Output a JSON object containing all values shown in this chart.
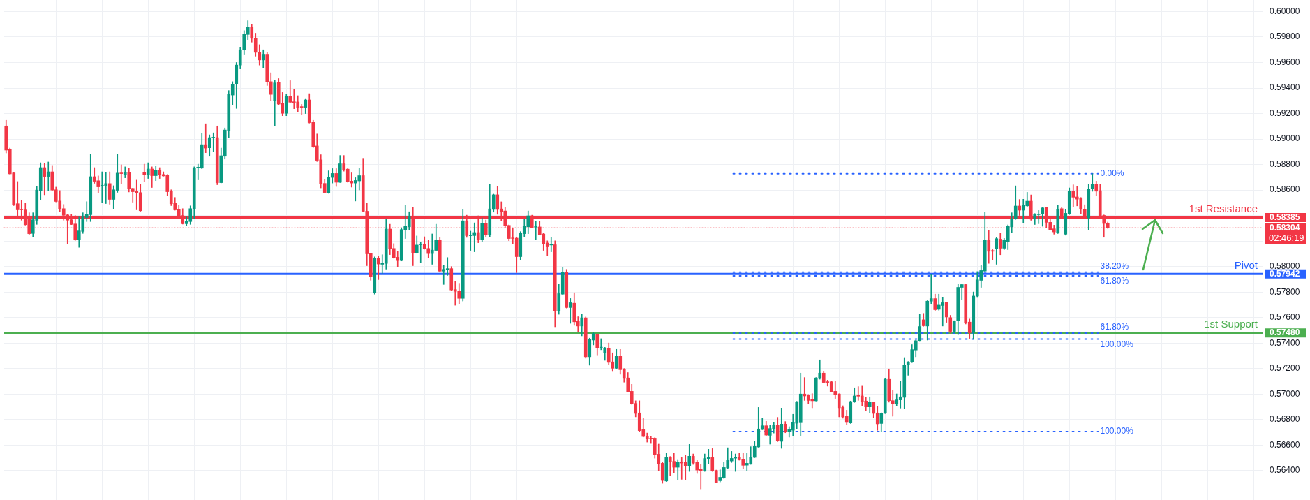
{
  "chart_data": {
    "type": "candlestick",
    "categories": [
      null,
      null,
      null,
      null,
      null,
      null,
      null,
      null,
      null,
      null,
      null,
      null,
      null,
      null,
      null,
      null,
      null,
      null,
      null,
      null,
      null,
      null,
      null,
      null,
      null,
      null,
      null,
      null,
      null,
      null,
      null,
      null,
      null,
      null,
      null,
      null,
      null,
      null,
      null,
      null,
      null,
      null,
      null,
      null,
      null,
      null,
      null,
      null,
      null,
      null,
      null,
      null,
      null,
      null,
      null,
      null,
      null,
      null,
      null,
      null,
      null,
      null,
      null,
      null,
      null,
      null,
      null,
      null,
      null,
      null,
      null,
      null,
      null,
      null,
      null,
      null,
      null,
      null,
      null,
      null,
      null,
      null,
      null,
      null,
      null,
      null,
      null,
      null,
      null,
      null,
      null,
      null,
      null,
      null,
      null,
      null,
      null,
      null,
      null,
      null,
      null,
      null,
      null,
      null,
      null,
      null,
      null,
      null,
      null,
      null,
      null,
      null,
      null,
      null,
      null,
      null,
      null,
      null,
      null,
      null,
      null,
      null,
      null,
      null,
      null,
      null,
      null,
      null,
      null,
      null,
      null,
      null,
      null,
      null,
      null,
      null,
      null,
      null,
      null,
      null,
      null,
      null,
      null,
      null,
      null,
      null,
      null,
      null,
      null,
      null,
      null,
      null,
      null,
      null,
      null,
      null,
      null,
      null,
      null,
      null,
      null,
      null,
      null,
      null,
      null,
      null,
      null,
      null,
      null,
      null,
      null,
      null,
      null,
      null,
      null,
      null,
      null,
      null,
      null,
      null,
      null,
      null,
      null,
      null,
      null,
      null,
      null,
      null,
      null,
      null,
      null,
      null,
      null,
      null,
      null,
      null,
      null,
      null,
      null,
      null,
      null,
      null,
      null,
      null,
      null,
      null,
      null,
      null,
      null,
      null,
      null,
      null,
      null,
      null,
      null,
      null,
      null,
      null,
      null,
      null,
      null,
      null,
      null,
      null,
      null,
      null,
      null,
      null,
      null,
      null,
      null,
      null,
      null,
      null,
      null,
      null,
      null,
      null,
      null,
      null,
      null,
      null,
      null,
      null,
      null,
      null,
      null,
      null,
      null,
      null,
      null,
      null,
      null,
      null,
      null,
      null,
      null,
      null,
      null,
      null,
      null,
      null,
      null,
      null,
      null,
      null,
      null,
      null,
      null,
      null,
      null,
      null,
      null,
      null,
      null,
      null,
      null,
      null,
      null,
      null,
      null,
      null,
      null,
      null,
      null,
      null,
      null,
      null,
      null,
      null,
      null,
      null,
      null,
      null,
      null,
      null,
      null,
      null,
      null,
      null,
      null,
      null,
      null,
      null,
      null,
      null,
      null,
      null,
      null,
      null,
      null,
      null,
      null,
      null,
      null,
      null,
      null,
      null,
      null,
      null,
      null,
      null,
      null,
      null,
      null,
      null,
      null,
      null
    ],
    "ohlc": [
      [
        0.59103,
        0.59147,
        0.58891,
        0.58913
      ],
      [
        0.58918,
        0.58929,
        0.58725,
        0.58727
      ],
      [
        0.58734,
        0.5874,
        0.58478,
        0.58487
      ],
      [
        0.58493,
        0.58667,
        0.58385,
        0.58445
      ],
      [
        0.58447,
        0.5852,
        0.58364,
        0.58445
      ],
      [
        0.58444,
        0.58498,
        0.58325,
        0.58329
      ],
      [
        0.58373,
        0.58422,
        0.58249,
        0.58258
      ],
      [
        0.5826,
        0.58422,
        0.58233,
        0.58367
      ],
      [
        0.58363,
        0.58629,
        0.58331,
        0.586
      ],
      [
        0.58596,
        0.58814,
        0.58522,
        0.58776
      ],
      [
        0.58776,
        0.58809,
        0.58563,
        0.58707
      ],
      [
        0.58707,
        0.5882,
        0.58593,
        0.58743
      ],
      [
        0.58743,
        0.58793,
        0.58596,
        0.586
      ],
      [
        0.58602,
        0.58623,
        0.58507,
        0.58511
      ],
      [
        0.58514,
        0.58596,
        0.58429,
        0.58451
      ],
      [
        0.58454,
        0.58487,
        0.58364,
        0.58402
      ],
      [
        0.58405,
        0.58408,
        0.58178,
        0.58364
      ],
      [
        0.58367,
        0.58411,
        0.58329,
        0.58331
      ],
      [
        0.58334,
        0.584,
        0.58205,
        0.58209
      ],
      [
        0.58211,
        0.58389,
        0.58151,
        0.5828
      ],
      [
        0.58276,
        0.58422,
        0.5826,
        0.58389
      ],
      [
        0.58385,
        0.58509,
        0.58353,
        0.58411
      ],
      [
        0.58407,
        0.5888,
        0.58353,
        0.58705
      ],
      [
        0.58705,
        0.58776,
        0.58653,
        0.58669
      ],
      [
        0.58673,
        0.58711,
        0.58576,
        0.58625
      ],
      [
        0.58632,
        0.58743,
        0.585,
        0.58634
      ],
      [
        0.58631,
        0.5874,
        0.58494,
        0.58651
      ],
      [
        0.58651,
        0.58743,
        0.58489,
        0.58527
      ],
      [
        0.58527,
        0.58634,
        0.58451,
        0.58602
      ],
      [
        0.58598,
        0.5888,
        0.58582,
        0.58733
      ],
      [
        0.58733,
        0.58798,
        0.58647,
        0.58729
      ],
      [
        0.58723,
        0.58782,
        0.58696,
        0.58738
      ],
      [
        0.58738,
        0.58771,
        0.58585,
        0.58609
      ],
      [
        0.58613,
        0.58615,
        0.58505,
        0.58587
      ],
      [
        0.58593,
        0.58678,
        0.58445,
        0.58576
      ],
      [
        0.5858,
        0.58645,
        0.58434,
        0.58438
      ],
      [
        0.58738,
        0.58803,
        0.58663,
        0.58718
      ],
      [
        0.58718,
        0.58814,
        0.58691,
        0.58765
      ],
      [
        0.58765,
        0.58782,
        0.5862,
        0.58713
      ],
      [
        0.58713,
        0.58787,
        0.58674,
        0.58754
      ],
      [
        0.58754,
        0.58776,
        0.58691,
        0.58718
      ],
      [
        0.58722,
        0.58743,
        0.58709,
        0.58711
      ],
      [
        0.58716,
        0.58722,
        0.58554,
        0.58587
      ],
      [
        0.58591,
        0.58602,
        0.58478,
        0.58493
      ],
      [
        0.58498,
        0.58542,
        0.58442,
        0.58445
      ],
      [
        0.58449,
        0.58482,
        0.58391,
        0.58396
      ],
      [
        0.584,
        0.58454,
        0.58333,
        0.58336
      ],
      [
        0.58336,
        0.58389,
        0.58318,
        0.58356
      ],
      [
        0.58353,
        0.58476,
        0.58331,
        0.58454
      ],
      [
        0.58451,
        0.58782,
        0.58374,
        0.58771
      ],
      [
        0.58774,
        0.58803,
        0.5868,
        0.58776
      ],
      [
        0.58772,
        0.59043,
        0.58767,
        0.58956
      ],
      [
        0.58956,
        0.5912,
        0.58893,
        0.58929
      ],
      [
        0.58931,
        0.59033,
        0.58865,
        0.59011
      ],
      [
        0.59009,
        0.59049,
        0.58903,
        0.59011
      ],
      [
        0.59011,
        0.59103,
        0.58642,
        0.58658
      ],
      [
        0.58658,
        0.58929,
        0.58656,
        0.58869
      ],
      [
        0.58865,
        0.59087,
        0.58843,
        0.59071
      ],
      [
        0.59067,
        0.5938,
        0.59012,
        0.5935
      ],
      [
        0.59345,
        0.5945,
        0.5927,
        0.5943
      ],
      [
        0.5943,
        0.596,
        0.5924,
        0.5958
      ],
      [
        0.5958,
        0.5972,
        0.5955,
        0.597
      ],
      [
        0.597,
        0.5985,
        0.5966,
        0.5982
      ],
      [
        0.5982,
        0.59928,
        0.5978,
        0.5988
      ],
      [
        0.5988,
        0.599,
        0.5976,
        0.5979
      ],
      [
        0.5979,
        0.5983,
        0.5965,
        0.5968
      ],
      [
        0.5968,
        0.5974,
        0.5958,
        0.5962
      ],
      [
        0.5962,
        0.597,
        0.5956,
        0.5966
      ],
      [
        0.5966,
        0.5968,
        0.5942,
        0.5945
      ],
      [
        0.5945,
        0.5952,
        0.593,
        0.5935
      ],
      [
        0.593,
        0.5946,
        0.59106,
        0.5944
      ],
      [
        0.59447,
        0.59474,
        0.59265,
        0.59274
      ],
      [
        0.5928,
        0.59365,
        0.59183,
        0.59202
      ],
      [
        0.59202,
        0.5935,
        0.59183,
        0.59334
      ],
      [
        0.59334,
        0.59458,
        0.59285,
        0.59289
      ],
      [
        0.59291,
        0.59389,
        0.59238,
        0.59287
      ],
      [
        0.59291,
        0.5934,
        0.59211,
        0.59249
      ],
      [
        0.59251,
        0.59272,
        0.59189,
        0.59249
      ],
      [
        0.59249,
        0.59312,
        0.592,
        0.59307
      ],
      [
        0.59307,
        0.59356,
        0.59125,
        0.59129
      ],
      [
        0.59133,
        0.59147,
        0.58933,
        0.58942
      ],
      [
        0.58946,
        0.5904,
        0.58824,
        0.58833
      ],
      [
        0.58837,
        0.58877,
        0.58617,
        0.5865
      ],
      [
        0.58652,
        0.58684,
        0.58577,
        0.58581
      ],
      [
        0.58579,
        0.58751,
        0.58574,
        0.58702
      ],
      [
        0.58699,
        0.58768,
        0.58655,
        0.5873
      ],
      [
        0.5873,
        0.58768,
        0.58628,
        0.58661
      ],
      [
        0.58661,
        0.58871,
        0.58659,
        0.58806
      ],
      [
        0.58806,
        0.58871,
        0.58748,
        0.58757
      ],
      [
        0.58764,
        0.5877,
        0.58661,
        0.58666
      ],
      [
        0.5867,
        0.58735,
        0.58623,
        0.58655
      ],
      [
        0.58655,
        0.58697,
        0.58514,
        0.58675
      ],
      [
        0.58672,
        0.58773,
        0.58601,
        0.58713
      ],
      [
        0.58713,
        0.58849,
        0.5843,
        0.58434
      ],
      [
        0.58434,
        0.58496,
        0.58007,
        0.581
      ],
      [
        0.58104,
        0.58106,
        0.57893,
        0.5792
      ],
      [
        0.57795,
        0.58076,
        0.57784,
        0.58065
      ],
      [
        0.58065,
        0.58082,
        0.57898,
        0.5802
      ],
      [
        0.58018,
        0.58093,
        0.57947,
        0.58027
      ],
      [
        0.58025,
        0.5837,
        0.5798,
        0.58294
      ],
      [
        0.58294,
        0.58332,
        0.58094,
        0.58138
      ],
      [
        0.58142,
        0.5818,
        0.58065,
        0.58069
      ],
      [
        0.58073,
        0.5812,
        0.57996,
        0.58047
      ],
      [
        0.58047,
        0.58305,
        0.58044,
        0.5829
      ],
      [
        0.58287,
        0.58479,
        0.5822,
        0.58316
      ],
      [
        0.58312,
        0.5843,
        0.58285,
        0.58392
      ],
      [
        0.58392,
        0.58463,
        0.58007,
        0.58107
      ],
      [
        0.58107,
        0.5824,
        0.58104,
        0.58169
      ],
      [
        0.58171,
        0.58191,
        0.58029,
        0.58174
      ],
      [
        0.58174,
        0.58234,
        0.58136,
        0.5814
      ],
      [
        0.58142,
        0.58207,
        0.58069,
        0.58102
      ],
      [
        0.58102,
        0.58256,
        0.58018,
        0.58129
      ],
      [
        0.58127,
        0.58332,
        0.58122,
        0.58207
      ],
      [
        0.58207,
        0.58229,
        0.57956,
        0.57964
      ],
      [
        0.57964,
        0.58013,
        0.5786,
        0.57978
      ],
      [
        0.57975,
        0.58071,
        0.57931,
        0.57984
      ],
      [
        0.57984,
        0.58,
        0.57811,
        0.57817
      ],
      [
        0.5782,
        0.57886,
        0.57697,
        0.57806
      ],
      [
        0.57809,
        0.57869,
        0.57708,
        0.57751
      ],
      [
        0.57751,
        0.58446,
        0.5773,
        0.58359
      ],
      [
        0.58359,
        0.58403,
        0.58229,
        0.58243
      ],
      [
        0.58242,
        0.58278,
        0.58127,
        0.58244
      ],
      [
        0.58243,
        0.58343,
        0.58116,
        0.58267
      ],
      [
        0.58267,
        0.58398,
        0.58187,
        0.58209
      ],
      [
        0.58209,
        0.58381,
        0.58196,
        0.58338
      ],
      [
        0.58338,
        0.58365,
        0.58231,
        0.58247
      ],
      [
        0.58247,
        0.58643,
        0.58231,
        0.58452
      ],
      [
        0.58448,
        0.58568,
        0.58427,
        0.58563
      ],
      [
        0.58563,
        0.58632,
        0.5841,
        0.58448
      ],
      [
        0.58452,
        0.58508,
        0.58361,
        0.5843
      ],
      [
        0.58436,
        0.58463,
        0.58307,
        0.58318
      ],
      [
        0.58323,
        0.58327,
        0.58203,
        0.5822
      ],
      [
        0.58223,
        0.583,
        0.58176,
        0.5822
      ],
      [
        0.58223,
        0.58229,
        0.57953,
        0.58078
      ],
      [
        0.58078,
        0.58274,
        0.58051,
        0.58261
      ],
      [
        0.58258,
        0.5837,
        0.58236,
        0.58316
      ],
      [
        0.58312,
        0.58436,
        0.58258,
        0.58398
      ],
      [
        0.58398,
        0.58403,
        0.58303,
        0.58305
      ],
      [
        0.58309,
        0.58354,
        0.58209,
        0.58311
      ],
      [
        0.58311,
        0.58354,
        0.58247,
        0.58252
      ],
      [
        0.58256,
        0.58263,
        0.58127,
        0.5818
      ],
      [
        0.58185,
        0.58202,
        0.58084,
        0.5816
      ],
      [
        0.58169,
        0.58231,
        0.58116,
        0.58171
      ],
      [
        0.58171,
        0.58202,
        0.57528,
        0.57652
      ],
      [
        0.57652,
        0.57864,
        0.57626,
        0.57788
      ],
      [
        0.57784,
        0.57995,
        0.57782,
        0.57955
      ],
      [
        0.57955,
        0.57978,
        0.57675,
        0.57679
      ],
      [
        0.57679,
        0.5775,
        0.57555,
        0.57717
      ],
      [
        0.57713,
        0.57795,
        0.57539,
        0.57567
      ],
      [
        0.5757,
        0.57607,
        0.57488,
        0.57534
      ],
      [
        0.57534,
        0.57625,
        0.57457,
        0.57598
      ],
      [
        0.57598,
        0.57605,
        0.57282,
        0.57293
      ],
      [
        0.57293,
        0.57439,
        0.57227,
        0.57428
      ],
      [
        0.57424,
        0.57486,
        0.57386,
        0.57475
      ],
      [
        0.57468,
        0.57472,
        0.57302,
        0.57364
      ],
      [
        0.57363,
        0.57435,
        0.57348,
        0.57366
      ],
      [
        0.57326,
        0.57367,
        0.57265,
        0.57357
      ],
      [
        0.57357,
        0.57401,
        0.57232,
        0.57249
      ],
      [
        0.57253,
        0.57324,
        0.57183,
        0.57203
      ],
      [
        0.57203,
        0.57351,
        0.57201,
        0.57296
      ],
      [
        0.57296,
        0.57351,
        0.57156,
        0.57192
      ],
      [
        0.57196,
        0.57201,
        0.57094,
        0.57123
      ],
      [
        0.57127,
        0.57169,
        0.57015,
        0.57019
      ],
      [
        0.57022,
        0.57077,
        0.5692,
        0.56924
      ],
      [
        0.56927,
        0.56948,
        0.56822,
        0.56849
      ],
      [
        0.56853,
        0.56948,
        0.56705,
        0.56714
      ],
      [
        0.56721,
        0.56809,
        0.56664,
        0.56668
      ],
      [
        0.56672,
        0.56695,
        0.56624,
        0.56652
      ],
      [
        0.56655,
        0.56668,
        0.56613,
        0.56649
      ],
      [
        0.56655,
        0.56659,
        0.56498,
        0.56526
      ],
      [
        0.56529,
        0.56608,
        0.56398,
        0.56454
      ],
      [
        0.56458,
        0.56467,
        0.56301,
        0.56323
      ],
      [
        0.56319,
        0.56535,
        0.56315,
        0.56502
      ],
      [
        0.56502,
        0.56511,
        0.56361,
        0.56469
      ],
      [
        0.56473,
        0.56535,
        0.56381,
        0.56427
      ],
      [
        0.56427,
        0.56482,
        0.56328,
        0.56464
      ],
      [
        0.56464,
        0.56502,
        0.56332,
        0.5646
      ],
      [
        0.56464,
        0.56522,
        0.56328,
        0.56438
      ],
      [
        0.56438,
        0.56606,
        0.56394,
        0.56513
      ],
      [
        0.56513,
        0.56531,
        0.56449,
        0.5646
      ],
      [
        0.56464,
        0.5648,
        0.56378,
        0.56405
      ],
      [
        0.56409,
        0.56453,
        0.56257,
        0.56401
      ],
      [
        0.56398,
        0.56531,
        0.56394,
        0.56495
      ],
      [
        0.56495,
        0.56568,
        0.56453,
        0.56502
      ],
      [
        0.56502,
        0.56573,
        0.56394,
        0.56398
      ],
      [
        0.56401,
        0.56405,
        0.56304,
        0.56308
      ],
      [
        0.56321,
        0.56407,
        0.56312,
        0.56348
      ],
      [
        0.56345,
        0.56464,
        0.56339,
        0.56425
      ],
      [
        0.56422,
        0.5658,
        0.56418,
        0.5648
      ],
      [
        0.56476,
        0.56551,
        0.56464,
        0.56496
      ],
      [
        0.56498,
        0.56531,
        0.56394,
        0.56502
      ],
      [
        0.56502,
        0.5654,
        0.56482,
        0.56485
      ],
      [
        0.56491,
        0.5654,
        0.56416,
        0.56442
      ],
      [
        0.56443,
        0.5654,
        0.56398,
        0.56458
      ],
      [
        0.56453,
        0.56588,
        0.56449,
        0.56507
      ],
      [
        0.56504,
        0.5663,
        0.56502,
        0.5659
      ],
      [
        0.56586,
        0.56896,
        0.56584,
        0.56727
      ],
      [
        0.56723,
        0.56812,
        0.56721,
        0.56752
      ],
      [
        0.56752,
        0.56787,
        0.56675,
        0.56679
      ],
      [
        0.56677,
        0.56754,
        0.56608,
        0.5673
      ],
      [
        0.5673,
        0.56781,
        0.56695,
        0.56754
      ],
      [
        0.56754,
        0.56818,
        0.56628,
        0.56632
      ],
      [
        0.5663,
        0.56891,
        0.56575,
        0.56765
      ],
      [
        0.56765,
        0.56785,
        0.56697,
        0.56705
      ],
      [
        0.56705,
        0.56745,
        0.56663,
        0.56721
      ],
      [
        0.56717,
        0.56842,
        0.56674,
        0.56776
      ],
      [
        0.56772,
        0.56944,
        0.56728,
        0.56935
      ],
      [
        0.56776,
        0.57165,
        0.56674,
        0.57001
      ],
      [
        0.57001,
        0.5713,
        0.56951,
        0.56986
      ],
      [
        0.56991,
        0.56997,
        0.56927,
        0.56951
      ],
      [
        0.56957,
        0.57004,
        0.56893,
        0.56948
      ],
      [
        0.56948,
        0.5713,
        0.56946,
        0.57127
      ],
      [
        0.57123,
        0.57269,
        0.57117,
        0.57165
      ],
      [
        0.57165,
        0.57181,
        0.57088,
        0.57092
      ],
      [
        0.57094,
        0.5711,
        0.57063,
        0.57092
      ],
      [
        0.57097,
        0.57104,
        0.57015,
        0.57019
      ],
      [
        0.57022,
        0.57104,
        0.56966,
        0.56997
      ],
      [
        0.57001,
        0.57003,
        0.56822,
        0.56893
      ],
      [
        0.56896,
        0.56909,
        0.56811,
        0.56822
      ],
      [
        0.56825,
        0.56874,
        0.56759,
        0.56778
      ],
      [
        0.56774,
        0.56946,
        0.5677,
        0.56942
      ],
      [
        0.56938,
        0.5705,
        0.56935,
        0.56986
      ],
      [
        0.56986,
        0.57059,
        0.56951,
        0.56984
      ],
      [
        0.56986,
        0.57063,
        0.56906,
        0.56942
      ],
      [
        0.56946,
        0.56973,
        0.56867,
        0.569
      ],
      [
        0.569,
        0.56979,
        0.56856,
        0.56938
      ],
      [
        0.56938,
        0.5694,
        0.56814,
        0.56849
      ],
      [
        0.56853,
        0.56906,
        0.56716,
        0.56767
      ],
      [
        0.5677,
        0.56854,
        0.56705,
        0.56851
      ],
      [
        0.56851,
        0.57121,
        0.56847,
        0.57116
      ],
      [
        0.57116,
        0.57198,
        0.56937,
        0.56949
      ],
      [
        0.56949,
        0.57032,
        0.56827,
        0.56927
      ],
      [
        0.56927,
        0.57002,
        0.56911,
        0.56955
      ],
      [
        0.56955,
        0.57101,
        0.56891,
        0.56979
      ],
      [
        0.56975,
        0.57287,
        0.56887,
        0.57229
      ],
      [
        0.57229,
        0.57256,
        0.57148,
        0.57251
      ],
      [
        0.57251,
        0.57388,
        0.57247,
        0.57349
      ],
      [
        0.57346,
        0.57424,
        0.57293,
        0.57419
      ],
      [
        0.57415,
        0.57625,
        0.57413,
        0.5753
      ],
      [
        0.57583,
        0.57633,
        0.57532,
        0.57536
      ],
      [
        0.57534,
        0.57733,
        0.57424,
        0.57729
      ],
      [
        0.57729,
        0.57938,
        0.57706,
        0.57749
      ],
      [
        0.57749,
        0.57784,
        0.57653,
        0.57662
      ],
      [
        0.57665,
        0.57784,
        0.57658,
        0.57698
      ],
      [
        0.57695,
        0.5776,
        0.57534,
        0.57717
      ],
      [
        0.5772,
        0.57722,
        0.57563,
        0.57605
      ],
      [
        0.576,
        0.57618,
        0.57479,
        0.57492
      ],
      [
        0.57492,
        0.57576,
        0.57481,
        0.57574
      ],
      [
        0.57574,
        0.57864,
        0.57466,
        0.57837
      ],
      [
        0.57837,
        0.57862,
        0.57742,
        0.57859
      ],
      [
        0.57859,
        0.57864,
        0.5755,
        0.57559
      ],
      [
        0.57565,
        0.57589,
        0.57437,
        0.57481
      ],
      [
        0.57481,
        0.57801,
        0.5743,
        0.57769
      ],
      [
        0.57769,
        0.57961,
        0.57758,
        0.57896
      ],
      [
        0.57892,
        0.58012,
        0.57837,
        0.57969
      ],
      [
        0.57965,
        0.58429,
        0.57961,
        0.58206
      ],
      [
        0.58206,
        0.58286,
        0.58025,
        0.5812
      ],
      [
        0.58124,
        0.58133,
        0.58051,
        0.5812
      ],
      [
        0.58142,
        0.5823,
        0.58018,
        0.58219
      ],
      [
        0.58215,
        0.58261,
        0.58093,
        0.58144
      ],
      [
        0.58144,
        0.58221,
        0.58133,
        0.58206
      ],
      [
        0.58197,
        0.58327,
        0.58133,
        0.58316
      ],
      [
        0.58312,
        0.58422,
        0.58264,
        0.58374
      ],
      [
        0.58374,
        0.58633,
        0.5837,
        0.58475
      ],
      [
        0.58475,
        0.58526,
        0.58401,
        0.58442
      ],
      [
        0.58442,
        0.58528,
        0.58345,
        0.58484
      ],
      [
        0.58476,
        0.58582,
        0.58472,
        0.58513
      ],
      [
        0.58513,
        0.58562,
        0.58363,
        0.58372
      ],
      [
        0.58376,
        0.58416,
        0.5833,
        0.58409
      ],
      [
        0.58407,
        0.5844,
        0.58336,
        0.58411
      ],
      [
        0.58412,
        0.58462,
        0.58316,
        0.5846
      ],
      [
        0.58464,
        0.58466,
        0.58305,
        0.58347
      ],
      [
        0.58347,
        0.58369,
        0.58286,
        0.5829
      ],
      [
        0.58296,
        0.58325,
        0.58254,
        0.58272
      ],
      [
        0.58264,
        0.5848,
        0.58259,
        0.58451
      ],
      [
        0.58454,
        0.58462,
        0.58381,
        0.58385
      ],
      [
        0.58254,
        0.58449,
        0.58246,
        0.58418
      ],
      [
        0.58412,
        0.58617,
        0.58408,
        0.5859
      ],
      [
        0.5859,
        0.58641,
        0.58471,
        0.58544
      ],
      [
        0.58546,
        0.58632,
        0.58476,
        0.58529
      ],
      [
        0.58533,
        0.58542,
        0.58412,
        0.58451
      ],
      [
        0.58451,
        0.58485,
        0.58378,
        0.58382
      ],
      [
        0.58381,
        0.58644,
        0.5829,
        0.58608
      ],
      [
        0.58608,
        0.58728,
        0.5859,
        0.58644
      ],
      [
        0.58644,
        0.5867,
        0.58555,
        0.58591
      ],
      [
        0.58595,
        0.58644,
        0.58376,
        0.5838
      ],
      [
        0.58401,
        0.58405,
        0.5823,
        0.58338
      ],
      [
        0.58338,
        0.58349,
        0.58299,
        0.58304
      ],
      null,
      null,
      null,
      null,
      null,
      null,
      null,
      null,
      null,
      null,
      null,
      null,
      null,
      null,
      null,
      null,
      null,
      null,
      null,
      null,
      null,
      null,
      null,
      null,
      null,
      null,
      null,
      null,
      null,
      null,
      null,
      null,
      null,
      null,
      null,
      null,
      null,
      null,
      null,
      null
    ],
    "colors": [
      "#f23645",
      "#f23645",
      "#f23645",
      "#f23645",
      "#f23645",
      "#f23645",
      "#f23645",
      "#089981",
      "#089981",
      "#089981",
      "#f23645",
      "#089981",
      "#f23645",
      "#f23645",
      "#f23645",
      "#f23645",
      "#f23645",
      "#f23645",
      "#f23645",
      "#089981",
      "#089981",
      "#089981",
      "#089981",
      "#f23645",
      "#f23645",
      "#089981",
      "#089981",
      "#f23645",
      "#089981",
      "#089981",
      "#f23645",
      "#089981",
      "#f23645",
      "#f23645",
      "#f23645",
      "#f23645",
      "#f23645",
      "#089981",
      "#f23645",
      "#089981",
      "#f23645",
      "#f23645",
      "#f23645",
      "#f23645",
      "#f23645",
      "#f23645",
      "#f23645",
      "#089981",
      "#089981",
      "#089981",
      "#089981",
      "#089981",
      "#f23645",
      "#089981",
      "#089981",
      "#f23645",
      "#089981",
      "#089981",
      "#089981",
      "#089981",
      "#089981",
      "#089981",
      "#089981",
      "#089981",
      "#f23645",
      "#f23645",
      "#f23645",
      "#089981",
      "#f23645",
      "#f23645",
      "#089981",
      "#f23645",
      "#f23645",
      "#089981",
      "#f23645",
      "#f23645",
      "#f23645",
      "#f23645",
      "#089981",
      "#f23645",
      "#f23645",
      "#f23645",
      "#f23645",
      "#f23645",
      "#089981",
      "#089981",
      "#f23645",
      "#089981",
      "#f23645",
      "#f23645",
      "#f23645",
      "#089981",
      "#089981",
      "#f23645",
      "#f23645",
      "#f23645",
      "#089981",
      "#f23645",
      "#089981",
      "#089981",
      "#f23645",
      "#f23645",
      "#f23645",
      "#089981",
      "#089981",
      "#089981",
      "#f23645",
      "#089981",
      "#089981",
      "#f23645",
      "#f23645",
      "#089981",
      "#089981",
      "#f23645",
      "#089981",
      "#089981",
      "#f23645",
      "#f23645",
      "#f23645",
      "#089981",
      "#f23645",
      "#089981",
      "#089981",
      "#f23645",
      "#089981",
      "#f23645",
      "#089981",
      "#089981",
      "#f23645",
      "#f23645",
      "#f23645",
      "#f23645",
      "#f23645",
      "#f23645",
      "#089981",
      "#089981",
      "#089981",
      "#f23645",
      "#089981",
      "#f23645",
      "#f23645",
      "#f23645",
      "#089981",
      "#f23645",
      "#089981",
      "#089981",
      "#f23645",
      "#089981",
      "#f23645",
      "#f23645",
      "#089981",
      "#f23645",
      "#089981",
      "#089981",
      "#f23645",
      "#089981",
      "#089981",
      "#f23645",
      "#f23645",
      "#089981",
      "#f23645",
      "#f23645",
      "#f23645",
      "#f23645",
      "#f23645",
      "#f23645",
      "#f23645",
      "#f23645",
      "#f23645",
      "#f23645",
      "#f23645",
      "#f23645",
      "#089981",
      "#f23645",
      "#f23645",
      "#089981",
      "#f23645",
      "#f23645",
      "#089981",
      "#f23645",
      "#f23645",
      "#f23645",
      "#089981",
      "#089981",
      "#f23645",
      "#f23645",
      "#089981",
      "#089981",
      "#089981",
      "#089981",
      "#089981",
      "#f23645",
      "#f23645",
      "#089981",
      "#089981",
      "#089981",
      "#089981",
      "#089981",
      "#f23645",
      "#089981",
      "#089981",
      "#f23645",
      "#089981",
      "#f23645",
      "#089981",
      "#089981",
      "#089981",
      "#089981",
      "#f23645",
      "#f23645",
      "#f23645",
      "#089981",
      "#089981",
      "#f23645",
      "#f23645",
      "#f23645",
      "#f23645",
      "#f23645",
      "#f23645",
      "#f23645",
      "#089981",
      "#089981",
      "#f23645",
      "#f23645",
      "#f23645",
      "#089981",
      "#f23645",
      "#f23645",
      "#089981",
      "#089981",
      "#f23645",
      "#f23645",
      "#089981",
      "#089981",
      "#089981",
      "#089981",
      "#089981",
      "#089981",
      "#089981",
      "#f23645",
      "#089981",
      "#089981",
      "#f23645",
      "#089981",
      "#089981",
      "#f23645",
      "#f23645",
      "#089981",
      "#089981",
      "#089981",
      "#f23645",
      "#f23645",
      "#089981",
      "#089981",
      "#089981",
      "#089981",
      "#f23645",
      "#f23645",
      "#089981",
      "#f23645",
      "#089981",
      "#089981",
      "#089981",
      "#089981",
      "#f23645",
      "#089981",
      "#089981",
      "#f23645",
      "#089981",
      "#089981",
      "#089981",
      "#f23645",
      "#f23645",
      "#f23645",
      "#089981",
      "#f23645",
      "#089981",
      "#089981",
      "#f23645",
      "#f23645",
      "#f23645",
      "#f23645",
      "#089981",
      "#089981",
      "#f23645",
      "#f23645",
      "#f23645",
      "#f23645",
      null,
      null,
      null,
      null,
      null,
      null,
      null,
      null,
      null,
      null,
      null,
      null,
      null,
      null,
      null,
      null,
      null,
      null,
      null,
      null,
      null,
      null,
      null,
      null,
      null,
      null,
      null,
      null,
      null,
      null,
      null,
      null,
      null,
      null,
      null,
      null,
      null,
      null,
      null,
      null
    ],
    "ylim": [
      0.5617,
      0.6009
    ],
    "yticks": [
      {
        "value": 0.564,
        "label": "0.56400"
      },
      {
        "value": 0.566,
        "label": "0.56600"
      },
      {
        "value": 0.568,
        "label": "0.56800"
      },
      {
        "value": 0.57,
        "label": "0.57000"
      },
      {
        "value": 0.572,
        "label": "0.57200"
      },
      {
        "value": 0.574,
        "label": "0.57400"
      },
      {
        "value": 0.5748,
        "label": "0.57480"
      },
      {
        "value": 0.576,
        "label": "0.57600"
      },
      {
        "value": 0.578,
        "label": "0.57800"
      },
      {
        "value": 0.57942,
        "label": "0.57942"
      },
      {
        "value": 0.58,
        "label": "0.58000"
      },
      {
        "value": 0.582,
        "label": null
      },
      {
        "value": 0.58304,
        "label": "0.58304"
      },
      {
        "value": 0.58385,
        "label": "0.58385"
      },
      {
        "value": 0.584,
        "label": null
      },
      {
        "value": 0.586,
        "label": "0.58600"
      },
      {
        "value": 0.588,
        "label": "0.58800"
      },
      {
        "value": 0.59,
        "label": "0.59000"
      },
      {
        "value": 0.592,
        "label": "0.59200"
      },
      {
        "value": 0.594,
        "label": "0.59400"
      },
      {
        "value": 0.596,
        "label": "0.59600"
      },
      {
        "value": 0.598,
        "label": "0.59800"
      },
      {
        "value": 0.6,
        "label": "0.60000"
      }
    ],
    "grid": true,
    "tick_labels": "y",
    "ref_lines": [
      {
        "axis": "y",
        "value": 0.58728,
        "color": "#2962ff",
        "line_style": "dotted"
      },
      {
        "axis": "y",
        "value": 0.57956,
        "color": "#2962ff",
        "line_style": "dotted"
      },
      {
        "axis": "y",
        "value": 0.57927,
        "color": "#2962ff",
        "line_style": "dotted"
      },
      {
        "axis": "y",
        "value": 0.57478,
        "color": "#2962ff",
        "line_style": "dotted"
      },
      {
        "axis": "y",
        "value": 0.57432,
        "color": "#2962ff",
        "line_style": "dotted"
      },
      {
        "axis": "y",
        "value": 0.56706,
        "color": "#2962ff",
        "line_style": "dotted"
      },
      {
        "axis": "y",
        "value": 0.58304,
        "color": "#f23645",
        "line_style": "dotted"
      },
      {
        "axis": "y",
        "value": 0.58385,
        "label": "1st Resistance",
        "color": "#f23645",
        "line_style": "solid"
      },
      {
        "axis": "y",
        "value": 0.57942,
        "label": "Pivot",
        "color": "#2962ff",
        "line_style": "solid"
      },
      {
        "axis": "y",
        "value": 0.5748,
        "label": "1st Support",
        "color": "#4caf50",
        "line_style": "solid"
      }
    ],
    "annotations": [
      "0.00%",
      "38.20%",
      "61.80%",
      "61.80%",
      "100.00%",
      "100.00%",
      "02:46:19"
    ]
  }
}
